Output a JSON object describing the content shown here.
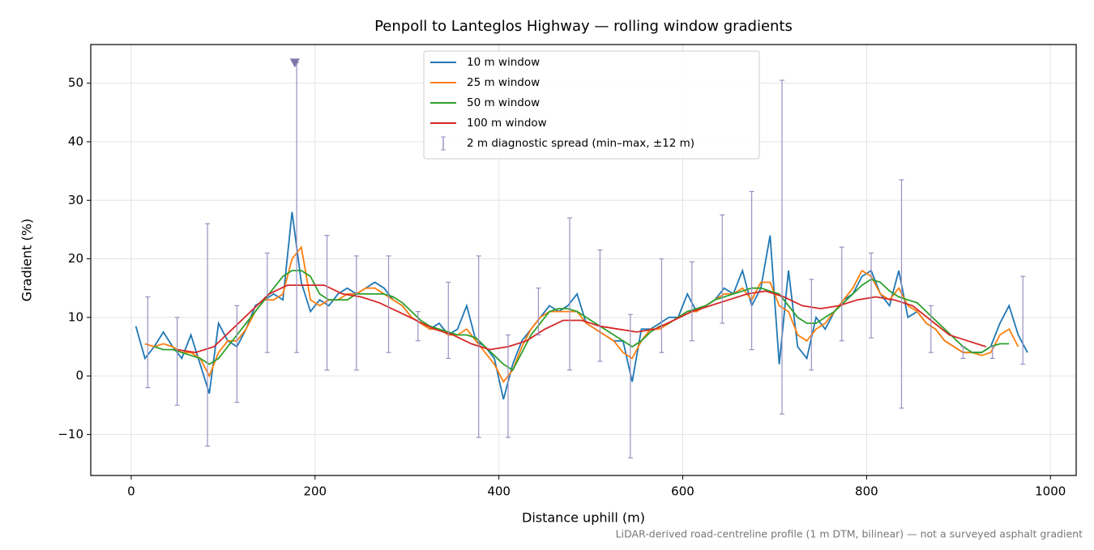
{
  "chart_data": {
    "type": "line",
    "title": "Penpoll to Lanteglos Highway — rolling window gradients",
    "x_label": "Distance uphill (m)",
    "y_label": "Gradient (%)",
    "footnote": "LiDAR-derived road-centreline profile (1 m DTM, bilinear) — not a surveyed asphalt gradient",
    "xlim": [
      -44,
      1028
    ],
    "ylim": [
      -17,
      56.6
    ],
    "xticks": [
      0,
      200,
      400,
      600,
      800,
      1000
    ],
    "yticks": [
      {
        "value": -10,
        "label": "−10"
      },
      0,
      10,
      20,
      30,
      40,
      50
    ],
    "grid": true,
    "legend": "upper center",
    "series": [
      {
        "name": "10 m window",
        "color": "#1f77b4",
        "x": [
          5,
          15,
          25,
          35,
          45,
          55,
          65,
          75,
          85,
          95,
          105,
          115,
          125,
          135,
          145,
          155,
          165,
          175,
          185,
          195,
          205,
          215,
          225,
          235,
          245,
          255,
          265,
          275,
          285,
          295,
          305,
          315,
          325,
          335,
          345,
          355,
          365,
          375,
          385,
          395,
          405,
          415,
          425,
          435,
          445,
          455,
          465,
          475,
          485,
          495,
          505,
          515,
          525,
          535,
          545,
          555,
          565,
          575,
          585,
          595,
          605,
          615,
          625,
          635,
          645,
          655,
          665,
          675,
          685,
          695,
          705,
          715,
          725,
          735,
          745,
          755,
          765,
          775,
          785,
          795,
          805,
          815,
          825,
          835,
          845,
          855,
          865,
          875,
          885,
          895,
          905,
          915,
          925,
          935,
          945,
          955,
          965,
          975
        ],
        "values": [
          8.5,
          3,
          5,
          7.5,
          5,
          3,
          7,
          2,
          -3,
          9,
          6,
          5,
          8,
          12,
          13,
          14,
          13,
          28,
          16,
          11,
          13,
          12,
          14,
          15,
          14,
          15,
          16,
          15,
          13,
          12,
          10,
          9,
          8,
          9,
          7,
          8,
          12,
          6,
          5,
          3,
          -4,
          2,
          6,
          8,
          10,
          12,
          11,
          12,
          14,
          9,
          8,
          7,
          6,
          6,
          -1,
          8,
          8,
          9,
          10,
          10,
          14,
          11,
          12,
          13,
          15,
          14,
          18,
          12,
          15,
          24,
          2,
          18,
          5,
          3,
          10,
          8,
          11,
          13,
          14,
          17,
          18,
          14,
          12,
          18,
          10,
          11,
          9,
          8,
          6,
          5,
          4,
          4,
          4,
          5,
          9,
          12,
          7,
          4
        ]
      },
      {
        "name": "25 m window",
        "color": "#ff7f0e",
        "x": [
          15,
          25,
          35,
          45,
          55,
          65,
          75,
          85,
          95,
          105,
          115,
          125,
          135,
          145,
          155,
          165,
          175,
          185,
          195,
          205,
          215,
          225,
          235,
          245,
          255,
          265,
          275,
          285,
          295,
          305,
          315,
          325,
          335,
          345,
          355,
          365,
          375,
          385,
          395,
          405,
          415,
          425,
          435,
          445,
          455,
          465,
          475,
          485,
          495,
          505,
          515,
          525,
          535,
          545,
          555,
          565,
          575,
          585,
          595,
          605,
          615,
          625,
          635,
          645,
          655,
          665,
          675,
          685,
          695,
          705,
          715,
          725,
          735,
          745,
          755,
          765,
          775,
          785,
          795,
          805,
          815,
          825,
          835,
          845,
          855,
          865,
          875,
          885,
          895,
          905,
          915,
          925,
          935,
          945,
          955,
          965
        ],
        "values": [
          5.5,
          5,
          5.5,
          5,
          4,
          4,
          3,
          0,
          4,
          6,
          6,
          8,
          11,
          13,
          13,
          14,
          20,
          22,
          13,
          12,
          13,
          13,
          14,
          14,
          15,
          15,
          14,
          13,
          12,
          10,
          9,
          8,
          8,
          7,
          7,
          8,
          6,
          4,
          2,
          -1,
          1,
          5,
          8,
          10,
          11,
          11,
          11,
          11,
          9,
          8,
          7,
          6,
          4,
          3,
          6,
          8,
          8,
          9,
          10,
          11,
          11,
          12,
          13,
          14,
          14,
          15,
          13,
          16,
          16,
          12,
          11,
          7,
          6,
          8,
          9,
          11,
          13,
          15,
          18,
          17,
          14,
          13,
          15,
          12,
          11,
          9,
          8,
          6,
          5,
          4,
          4,
          3.5,
          4,
          7,
          8,
          5
        ]
      },
      {
        "name": "50 m window",
        "color": "#2ca02c",
        "x": [
          25,
          35,
          45,
          55,
          65,
          75,
          85,
          95,
          105,
          115,
          125,
          135,
          145,
          155,
          165,
          175,
          185,
          195,
          205,
          215,
          225,
          235,
          245,
          255,
          265,
          275,
          285,
          295,
          305,
          315,
          325,
          335,
          345,
          355,
          365,
          375,
          385,
          395,
          405,
          415,
          425,
          435,
          445,
          455,
          465,
          475,
          485,
          495,
          505,
          515,
          525,
          535,
          545,
          555,
          565,
          575,
          585,
          595,
          605,
          615,
          625,
          635,
          645,
          655,
          665,
          675,
          685,
          695,
          705,
          715,
          725,
          735,
          745,
          755,
          765,
          775,
          785,
          795,
          805,
          815,
          825,
          835,
          845,
          855,
          865,
          875,
          885,
          895,
          905,
          915,
          925,
          935,
          945,
          955
        ],
        "values": [
          5,
          4.5,
          4.5,
          4,
          3.5,
          3,
          2,
          3,
          5,
          7,
          9,
          11,
          13,
          15,
          17,
          18,
          18,
          17,
          14,
          13,
          13,
          13,
          14,
          14,
          14,
          14,
          13.5,
          12.5,
          11,
          9.5,
          8.5,
          8,
          7.5,
          7,
          7,
          6.5,
          5,
          3.5,
          2,
          1,
          4,
          7,
          9,
          11,
          11.5,
          11.5,
          11,
          10,
          9,
          8,
          7,
          6,
          5,
          6,
          7.5,
          8.5,
          9,
          10,
          11,
          11.5,
          12,
          13,
          13.5,
          14,
          14.5,
          15,
          15,
          14.5,
          14,
          12,
          10,
          9,
          9,
          10,
          11,
          12.5,
          14,
          15.5,
          16.5,
          16,
          14.5,
          13.5,
          13,
          12.5,
          11,
          9.5,
          8,
          6.5,
          5,
          4,
          4,
          5,
          5.5,
          5.5
        ]
      },
      {
        "name": "100 m window",
        "color": "#d62728",
        "x": [
          50,
          70,
          90,
          110,
          130,
          150,
          170,
          190,
          210,
          230,
          250,
          270,
          290,
          310,
          330,
          350,
          370,
          390,
          410,
          430,
          450,
          470,
          490,
          510,
          530,
          550,
          570,
          590,
          610,
          630,
          650,
          670,
          690,
          710,
          730,
          750,
          770,
          790,
          810,
          830,
          850,
          870,
          890,
          910,
          930
        ],
        "values": [
          4.5,
          4,
          5,
          8,
          11,
          14,
          15.5,
          15.5,
          15.5,
          14,
          13.5,
          12.5,
          11,
          9.5,
          8,
          7,
          5.5,
          4.5,
          5,
          6,
          8,
          9.5,
          9.5,
          8.5,
          8,
          7.5,
          8,
          9.5,
          11,
          12,
          13,
          14,
          14.5,
          13.5,
          12,
          11.5,
          12,
          13,
          13.5,
          13,
          12,
          9.5,
          7,
          6,
          5
        ]
      },
      {
        "name": "2 m diagnostic spread (min–max, ±12 m)",
        "type": "errorbar",
        "color": "#9a90c0",
        "x": [
          18,
          50,
          83,
          115,
          148,
          180,
          213,
          245,
          280,
          312,
          345,
          378,
          410,
          443,
          477,
          510,
          543,
          577,
          610,
          643,
          675,
          708,
          740,
          773,
          805,
          838,
          870,
          905,
          937,
          970
        ],
        "min": [
          -2,
          -5,
          -12,
          -4.5,
          4,
          4,
          1,
          1,
          4,
          6,
          3,
          -10.5,
          -10.5,
          7,
          1,
          2.5,
          -14,
          4,
          6,
          9,
          4.5,
          -6.5,
          1,
          6,
          6.5,
          -5.5,
          4,
          3,
          3,
          2
        ],
        "max": [
          13.5,
          10,
          26,
          12,
          21,
          53.5,
          24,
          20.5,
          20.5,
          11,
          16,
          20.5,
          7,
          15,
          27,
          21.5,
          10.5,
          20,
          19.5,
          27.5,
          31.5,
          50.5,
          16.5,
          22,
          21,
          33.5,
          12,
          5,
          5,
          17
        ]
      }
    ],
    "peak_marker": {
      "x": 178,
      "y": 53.5,
      "color": "#8075a8"
    }
  }
}
